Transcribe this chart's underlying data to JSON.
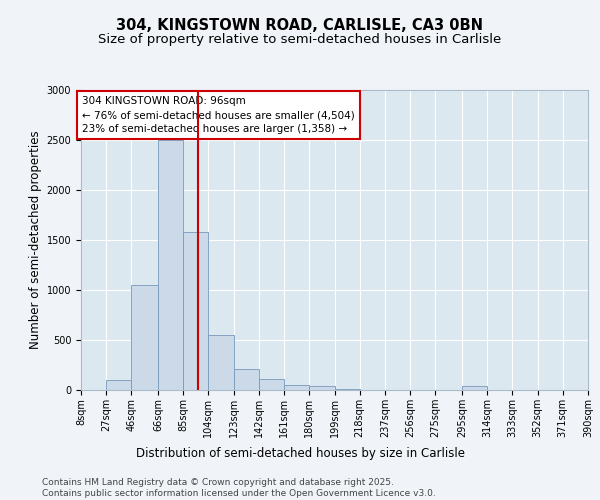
{
  "title_line1": "304, KINGSTOWN ROAD, CARLISLE, CA3 0BN",
  "title_line2": "Size of property relative to semi-detached houses in Carlisle",
  "xlabel": "Distribution of semi-detached houses by size in Carlisle",
  "ylabel": "Number of semi-detached properties",
  "footnote_line1": "Contains HM Land Registry data © Crown copyright and database right 2025.",
  "footnote_line2": "Contains public sector information licensed under the Open Government Licence v3.0.",
  "annotation_line1": "304 KINGSTOWN ROAD: 96sqm",
  "annotation_line2": "← 76% of semi-detached houses are smaller (4,504)",
  "annotation_line3": "23% of semi-detached houses are larger (1,358) →",
  "property_size": 96,
  "bin_edges": [
    8,
    27,
    46,
    66,
    85,
    104,
    123,
    142,
    161,
    180,
    199,
    218,
    237,
    256,
    275,
    295,
    314,
    333,
    352,
    371,
    390
  ],
  "bar_heights": [
    0,
    100,
    1050,
    2500,
    1580,
    550,
    215,
    110,
    55,
    45,
    10,
    5,
    5,
    5,
    5,
    40,
    5,
    5,
    5,
    5
  ],
  "bar_color": "#ccd9e8",
  "bar_edge_color": "#7799bb",
  "vline_color": "#cc0000",
  "fig_bg_color": "#f0f4f8",
  "plot_bg_color": "#dce8f0",
  "ylim": [
    0,
    3000
  ],
  "yticks": [
    0,
    500,
    1000,
    1500,
    2000,
    2500,
    3000
  ],
  "annotation_box_color": "#ffffff",
  "annotation_box_edge": "#cc0000",
  "title_fontsize": 10.5,
  "subtitle_fontsize": 9.5,
  "axis_label_fontsize": 8.5,
  "tick_fontsize": 7,
  "annotation_fontsize": 7.5,
  "footnote_fontsize": 6.5
}
